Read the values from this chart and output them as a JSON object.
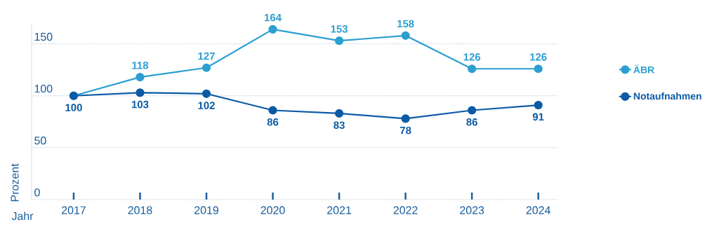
{
  "chart_data": {
    "type": "line",
    "xlabel": "Jahr",
    "ylabel": "Prozent",
    "categories": [
      "2017",
      "2018",
      "2019",
      "2020",
      "2021",
      "2022",
      "2023",
      "2024"
    ],
    "series": [
      {
        "name": "ÄBR",
        "color": "#2b9fd2",
        "values": [
          100,
          118,
          127,
          164,
          153,
          158,
          126,
          126
        ],
        "value_labels": [
          null,
          "118",
          "127",
          "164",
          "153",
          "158",
          "126",
          "126"
        ]
      },
      {
        "name": "Notaufnahmen",
        "color": "#0b5aa6",
        "values": [
          100,
          103,
          102,
          86,
          83,
          78,
          86,
          91
        ],
        "value_labels": [
          "100",
          "103",
          "102",
          "86",
          "83",
          "78",
          "86",
          "91"
        ]
      }
    ],
    "ylim": [
      0,
      170
    ],
    "yticks": [
      0,
      50,
      100,
      150
    ],
    "grid": "y",
    "legend": "right",
    "marker": "circle",
    "line_style": "solid"
  }
}
